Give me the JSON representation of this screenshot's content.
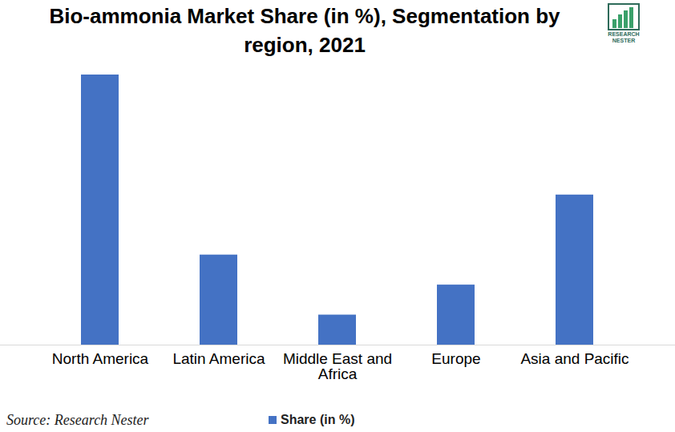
{
  "chart_data": {
    "type": "bar",
    "title": "Bio-ammonia Market Share (in %), Segmentation by region, 2021",
    "categories": [
      "North America",
      "Latin America",
      "Middle East and Africa",
      "Europe",
      "Asia and Pacific"
    ],
    "series": [
      {
        "name": "Share (in %)",
        "color": "#4472c4",
        "values": [
          45,
          15,
          5,
          10,
          25
        ]
      }
    ],
    "ylim": [
      0,
      45
    ],
    "tick_labels": "x",
    "grid": false,
    "legend": "bottom",
    "source": "Source: Research Nester",
    "brand": "RESEARCH NESTER"
  }
}
